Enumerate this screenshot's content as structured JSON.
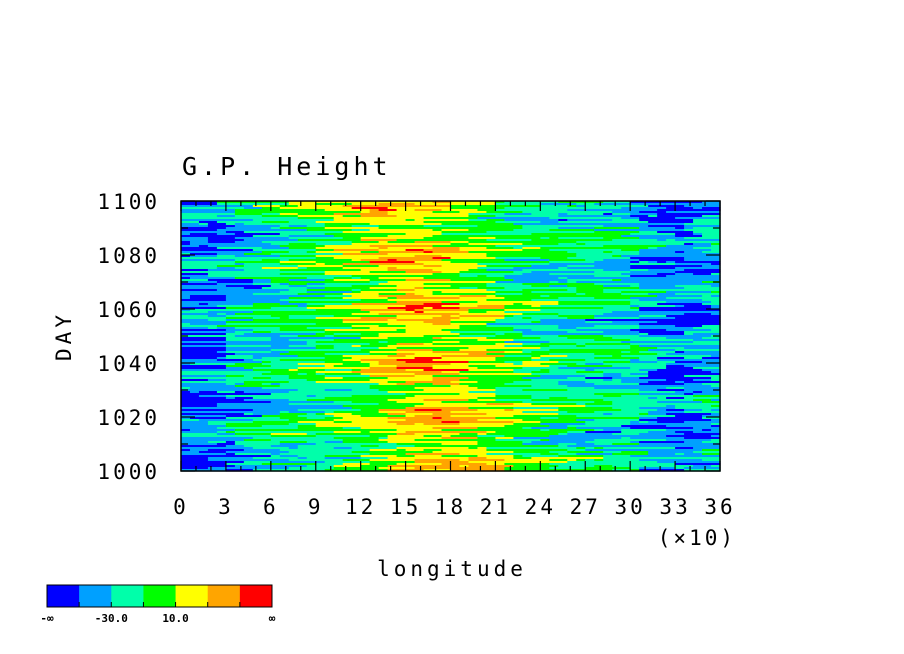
{
  "chart_data": {
    "type": "heatmap",
    "title": "G.P. Height",
    "xlabel": "longitude",
    "ylabel": "DAY",
    "x_multiplier_label": "(×10)",
    "xlim": [
      0,
      36
    ],
    "ylim": [
      1000,
      1100
    ],
    "x_ticks": [
      0,
      3,
      6,
      9,
      12,
      15,
      18,
      21,
      24,
      27,
      30,
      33,
      36
    ],
    "x_tick_labels": [
      "0",
      "3",
      "6",
      "9",
      "12",
      "15",
      "18",
      "21",
      "24",
      "27",
      "30",
      "33",
      "36"
    ],
    "y_ticks": [
      1000,
      1020,
      1040,
      1060,
      1080,
      1100
    ],
    "y_tick_labels": [
      "1000",
      "1020",
      "1040",
      "1060",
      "1080",
      "1100"
    ],
    "colorbar": {
      "colors": [
        "#0000ff",
        "#00a0ff",
        "#00ffaa",
        "#00ff00",
        "#ffff00",
        "#ffa500",
        "#ff0000"
      ],
      "labels": [
        "-∞",
        "-30.0",
        "10.0",
        "∞"
      ]
    }
  }
}
